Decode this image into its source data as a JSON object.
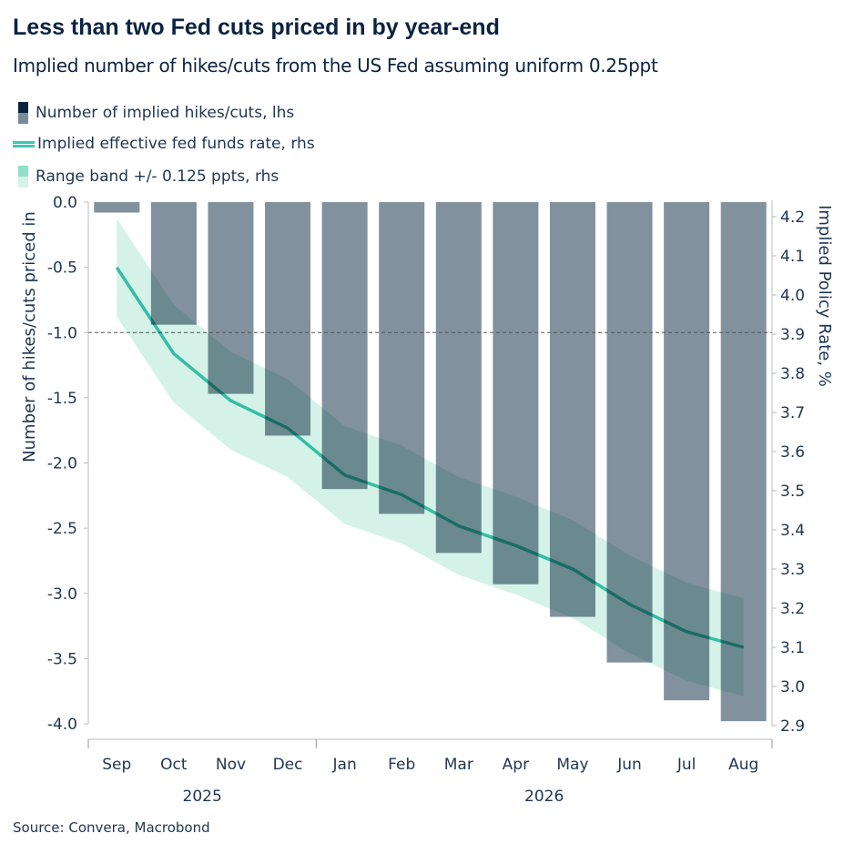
{
  "header": {
    "title": "Less than two Fed cuts priced in by year-end",
    "subtitle": "Implied number of hikes/cuts from the US Fed assuming uniform 0.25ppt"
  },
  "source": "Source: Convera, Macrobond",
  "chart_data": {
    "type": "bar+line",
    "categories": [
      "Sep",
      "Oct",
      "Nov",
      "Dec",
      "Jan",
      "Feb",
      "Mar",
      "Apr",
      "May",
      "Jun",
      "Jul",
      "Aug"
    ],
    "year_labels": [
      {
        "label": "2025",
        "months": [
          "Sep",
          "Oct",
          "Nov",
          "Dec"
        ]
      },
      {
        "label": "2026",
        "months": [
          "Jan",
          "Feb",
          "Mar",
          "Apr",
          "May",
          "Jun",
          "Jul",
          "Aug"
        ]
      }
    ],
    "series": [
      {
        "name": "Number of implied hikes/cuts, lhs",
        "type": "bar",
        "axis": "left",
        "color": "#7a8b99",
        "values": [
          -0.08,
          -0.94,
          -1.47,
          -1.79,
          -2.2,
          -2.39,
          -2.69,
          -2.93,
          -3.18,
          -3.53,
          -3.82,
          -3.98
        ]
      },
      {
        "name": "Implied effective fed funds rate, rhs",
        "type": "line",
        "axis": "right",
        "color": "#3cc8b4",
        "values": [
          4.07,
          3.85,
          3.73,
          3.66,
          3.54,
          3.49,
          3.41,
          3.36,
          3.3,
          3.21,
          3.14,
          3.1
        ]
      },
      {
        "name": "Range band +/- 0.125 ppts, rhs",
        "type": "band",
        "axis": "right",
        "color": "#9fe3cc",
        "band": 0.125
      }
    ],
    "left_axis": {
      "label": "Number of hikes/cuts priced in",
      "range": [
        -4.0,
        0.0
      ],
      "ticks": [
        "0.0",
        "-0.5",
        "-1.0",
        "-1.5",
        "-2.0",
        "-2.5",
        "-3.0",
        "-3.5",
        "-4.0"
      ]
    },
    "right_axis": {
      "label": "Implied Policy Rate, %",
      "range": [
        2.9,
        4.2
      ],
      "ticks": [
        "4.2",
        "4.1",
        "4.0",
        "3.9",
        "3.8",
        "3.7",
        "3.6",
        "3.5",
        "3.4",
        "3.3",
        "3.2",
        "3.1",
        "3.0",
        "2.9"
      ]
    },
    "reference_line": {
      "axis": "left",
      "value": -1.0,
      "style": "dashed"
    },
    "legend_position": "top-left",
    "grid": false
  }
}
